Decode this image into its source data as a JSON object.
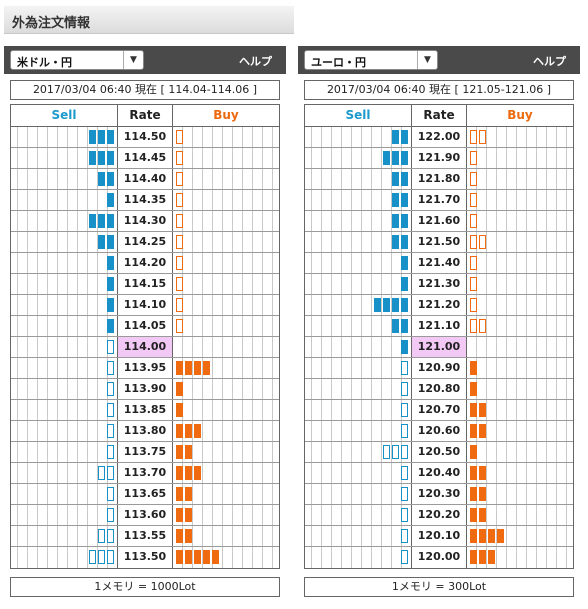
{
  "page_title": "外為注文情報",
  "colors": {
    "sell": "#1891c8",
    "buy": "#f06a10",
    "current_rate_bg": "#f2c8f4"
  },
  "panels": [
    {
      "pair": "米ドル・円",
      "help": "ヘルプ",
      "info": "2017/03/04  06:40 現在 [ 114.04-114.06 ]",
      "headers": {
        "sell": "Sell",
        "rate": "Rate",
        "buy": "Buy"
      },
      "footer": "1メモリ = 1000Lot",
      "rows": [
        {
          "rate": "114.50",
          "sell": 3,
          "sell_type": "f",
          "buy": 1,
          "buy_type": "o"
        },
        {
          "rate": "114.45",
          "sell": 3,
          "sell_type": "f",
          "buy": 1,
          "buy_type": "o"
        },
        {
          "rate": "114.40",
          "sell": 2,
          "sell_type": "f",
          "buy": 1,
          "buy_type": "o"
        },
        {
          "rate": "114.35",
          "sell": 1,
          "sell_type": "f",
          "buy": 1,
          "buy_type": "o"
        },
        {
          "rate": "114.30",
          "sell": 3,
          "sell_type": "f",
          "buy": 1,
          "buy_type": "o"
        },
        {
          "rate": "114.25",
          "sell": 2,
          "sell_type": "f",
          "buy": 1,
          "buy_type": "o"
        },
        {
          "rate": "114.20",
          "sell": 1,
          "sell_type": "f",
          "buy": 1,
          "buy_type": "o"
        },
        {
          "rate": "114.15",
          "sell": 1,
          "sell_type": "f",
          "buy": 1,
          "buy_type": "o"
        },
        {
          "rate": "114.10",
          "sell": 1,
          "sell_type": "f",
          "buy": 1,
          "buy_type": "o"
        },
        {
          "rate": "114.05",
          "sell": 1,
          "sell_type": "f",
          "buy": 1,
          "buy_type": "o"
        },
        {
          "rate": "114.00",
          "sell": 1,
          "sell_type": "o",
          "buy": 0,
          "buy_type": "f",
          "current": true
        },
        {
          "rate": "113.95",
          "sell": 1,
          "sell_type": "o",
          "buy": 4,
          "buy_type": "f"
        },
        {
          "rate": "113.90",
          "sell": 1,
          "sell_type": "o",
          "buy": 1,
          "buy_type": "f"
        },
        {
          "rate": "113.85",
          "sell": 1,
          "sell_type": "o",
          "buy": 1,
          "buy_type": "f"
        },
        {
          "rate": "113.80",
          "sell": 1,
          "sell_type": "o",
          "buy": 3,
          "buy_type": "f"
        },
        {
          "rate": "113.75",
          "sell": 1,
          "sell_type": "o",
          "buy": 2,
          "buy_type": "f"
        },
        {
          "rate": "113.70",
          "sell": 2,
          "sell_type": "o",
          "buy": 3,
          "buy_type": "f"
        },
        {
          "rate": "113.65",
          "sell": 1,
          "sell_type": "o",
          "buy": 2,
          "buy_type": "f"
        },
        {
          "rate": "113.60",
          "sell": 1,
          "sell_type": "o",
          "buy": 2,
          "buy_type": "f"
        },
        {
          "rate": "113.55",
          "sell": 2,
          "sell_type": "o",
          "buy": 2,
          "buy_type": "f"
        },
        {
          "rate": "113.50",
          "sell": 3,
          "sell_type": "o",
          "buy": 5,
          "buy_type": "f"
        }
      ]
    },
    {
      "pair": "ユーロ・円",
      "help": "ヘルプ",
      "info": "2017/03/04  06:40 現在 [ 121.05-121.06 ]",
      "headers": {
        "sell": "Sell",
        "rate": "Rate",
        "buy": "Buy"
      },
      "footer": "1メモリ = 300Lot",
      "rows": [
        {
          "rate": "122.00",
          "sell": 2,
          "sell_type": "f",
          "buy": 2,
          "buy_type": "o"
        },
        {
          "rate": "121.90",
          "sell": 3,
          "sell_type": "f",
          "buy": 1,
          "buy_type": "o"
        },
        {
          "rate": "121.80",
          "sell": 2,
          "sell_type": "f",
          "buy": 1,
          "buy_type": "o"
        },
        {
          "rate": "121.70",
          "sell": 2,
          "sell_type": "f",
          "buy": 1,
          "buy_type": "o"
        },
        {
          "rate": "121.60",
          "sell": 2,
          "sell_type": "f",
          "buy": 1,
          "buy_type": "o"
        },
        {
          "rate": "121.50",
          "sell": 2,
          "sell_type": "f",
          "buy": 2,
          "buy_type": "o"
        },
        {
          "rate": "121.40",
          "sell": 1,
          "sell_type": "f",
          "buy": 1,
          "buy_type": "o"
        },
        {
          "rate": "121.30",
          "sell": 1,
          "sell_type": "f",
          "buy": 1,
          "buy_type": "o"
        },
        {
          "rate": "121.20",
          "sell": 4,
          "sell_type": "f",
          "buy": 1,
          "buy_type": "o"
        },
        {
          "rate": "121.10",
          "sell": 2,
          "sell_type": "f",
          "buy": 2,
          "buy_type": "o"
        },
        {
          "rate": "121.00",
          "sell": 1,
          "sell_type": "f",
          "buy": 0,
          "buy_type": "f",
          "current": true
        },
        {
          "rate": "120.90",
          "sell": 1,
          "sell_type": "o",
          "buy": 1,
          "buy_type": "f"
        },
        {
          "rate": "120.80",
          "sell": 1,
          "sell_type": "o",
          "buy": 1,
          "buy_type": "f"
        },
        {
          "rate": "120.70",
          "sell": 1,
          "sell_type": "o",
          "buy": 2,
          "buy_type": "f"
        },
        {
          "rate": "120.60",
          "sell": 1,
          "sell_type": "o",
          "buy": 2,
          "buy_type": "f"
        },
        {
          "rate": "120.50",
          "sell": 3,
          "sell_type": "o",
          "buy": 1,
          "buy_type": "f"
        },
        {
          "rate": "120.40",
          "sell": 1,
          "sell_type": "o",
          "buy": 2,
          "buy_type": "f"
        },
        {
          "rate": "120.30",
          "sell": 1,
          "sell_type": "o",
          "buy": 2,
          "buy_type": "f"
        },
        {
          "rate": "120.20",
          "sell": 1,
          "sell_type": "o",
          "buy": 2,
          "buy_type": "f"
        },
        {
          "rate": "120.10",
          "sell": 1,
          "sell_type": "o",
          "buy": 4,
          "buy_type": "f"
        },
        {
          "rate": "120.00",
          "sell": 1,
          "sell_type": "o",
          "buy": 3,
          "buy_type": "f"
        }
      ]
    }
  ]
}
